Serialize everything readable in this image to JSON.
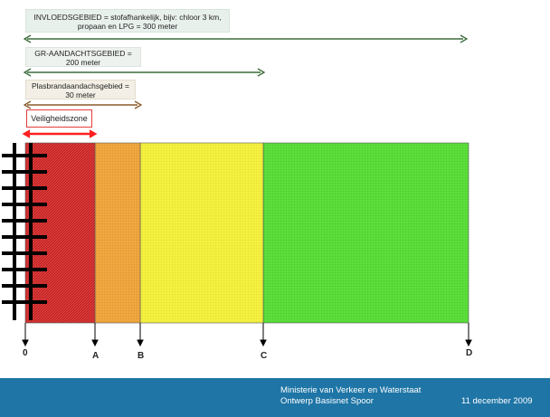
{
  "zones": {
    "invloed": "INVLOEDSGEBIED = stofafhankelijk, bijv: chloor 3 km,\npropaan en LPG = 300 meter",
    "gr": "GR-AANDACHTSGEBIED =\n200 meter",
    "plasbrand": "Plasbrandaandachsgebied =\n30 meter",
    "veiligheid": "Veiligheidszone"
  },
  "colors": {
    "safety": "#e03b3b",
    "plasbrand": "#f0a640",
    "gr": "#f3f040",
    "invloed": "#5cdd3c",
    "arrow_green": "#3a6b3a",
    "arrow_brown": "#8a5a2a",
    "arrow_red": "#ff2020",
    "footer": "#1e75a6"
  },
  "axis": {
    "ticks": [
      "0",
      "A",
      "B",
      "C",
      "D"
    ]
  },
  "footer": {
    "line1": "Ministerie van Verkeer en Waterstaat",
    "line2": "Ontwerp Basisnet Spoor",
    "date": "11 december 2009"
  }
}
